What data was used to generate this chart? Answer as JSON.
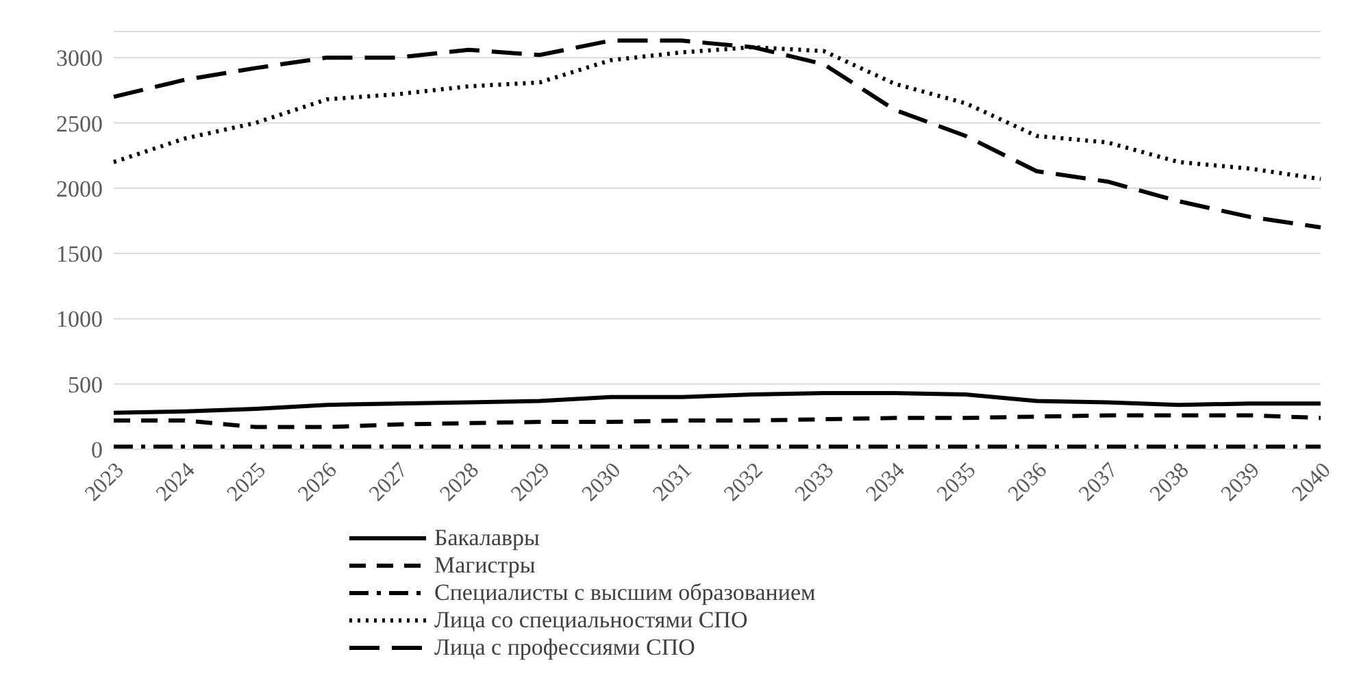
{
  "chart_data": {
    "type": "line",
    "categories": [
      "2023",
      "2024",
      "2025",
      "2026",
      "2027",
      "2028",
      "2029",
      "2030",
      "2031",
      "2032",
      "2033",
      "2034",
      "2035",
      "2036",
      "2037",
      "2038",
      "2039",
      "2040"
    ],
    "series": [
      {
        "name": "Бакалавры",
        "color": "#000000",
        "line_style": "solid",
        "values": [
          280,
          290,
          310,
          340,
          350,
          360,
          370,
          400,
          400,
          420,
          430,
          430,
          420,
          370,
          360,
          340,
          350,
          350
        ]
      },
      {
        "name": "Магистры",
        "color": "#000000",
        "line_style": "dashed",
        "values": [
          220,
          220,
          170,
          170,
          190,
          200,
          210,
          210,
          220,
          220,
          230,
          240,
          240,
          250,
          260,
          260,
          260,
          240
        ]
      },
      {
        "name": "Специалисты с высшим образованием",
        "color": "#000000",
        "line_style": "dashdot",
        "values": [
          20,
          20,
          20,
          20,
          20,
          20,
          20,
          20,
          20,
          20,
          20,
          20,
          20,
          20,
          20,
          20,
          20,
          20
        ]
      },
      {
        "name": "Лица со специальностями СПО",
        "color": "#000000",
        "line_style": "dotted",
        "values": [
          2200,
          2380,
          2500,
          2680,
          2720,
          2780,
          2810,
          2980,
          3040,
          3080,
          3050,
          2800,
          2650,
          2400,
          2350,
          2200,
          2150,
          2070
        ]
      },
      {
        "name": "Лица с профессиями СПО",
        "color": "#000000",
        "line_style": "longdash",
        "values": [
          2700,
          2830,
          2920,
          3000,
          3000,
          3060,
          3020,
          3130,
          3130,
          3080,
          2950,
          2600,
          2400,
          2130,
          2050,
          1900,
          1780,
          1700
        ]
      }
    ],
    "ylim": [
      0,
      3200
    ],
    "yticks": [
      0,
      500,
      1000,
      1500,
      2000,
      2500,
      3000
    ],
    "grid": "y",
    "legend": "bottom",
    "marker": "none"
  }
}
